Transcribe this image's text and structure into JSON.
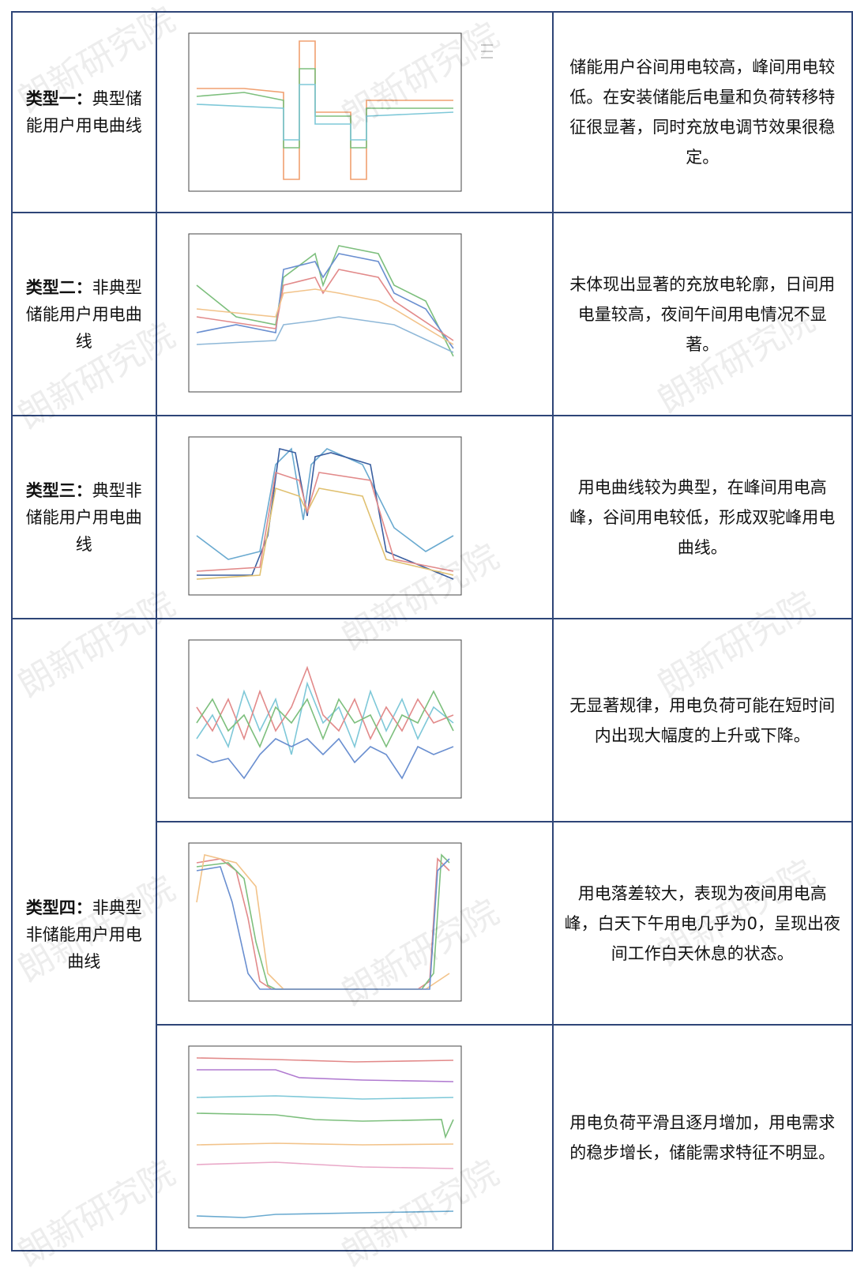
{
  "watermark": "朗新研究院",
  "rows": [
    {
      "label_bold": "类型一：",
      "label_rest": "典型储能用户用电曲线",
      "descriptions": [
        "储能用户谷间用电较高，峰间用电较低。在安装储能后电量和负荷转移特征很显著，同时充放电调节效果很稳定。"
      ]
    },
    {
      "label_bold": "类型二：",
      "label_rest": "非典型储能用户用电曲线",
      "descriptions": [
        "未体现出显著的充放电轮廓，日间用电量较高，夜间午间用电情况不显著。"
      ]
    },
    {
      "label_bold": "类型三：",
      "label_rest": "典型非储能用户用电曲线",
      "descriptions": [
        "用电曲线较为典型，在峰间用电高峰，谷间用电较低，形成双驼峰用电曲线。"
      ]
    },
    {
      "label_bold": "类型四：",
      "label_rest": "非典型非储能用户用电曲线",
      "descriptions": [
        "无显著规律，用电负荷可能在短时间内出现大幅度的上升或下降。",
        "用电落差较大，表现为夜间用电高峰，白天下午用电几乎为0，呈现出夜间工作白天休息的状态。",
        "用电负荷平滑且逐月增加，用电需求的稳步增长，储能需求特征不明显。"
      ]
    }
  ]
}
